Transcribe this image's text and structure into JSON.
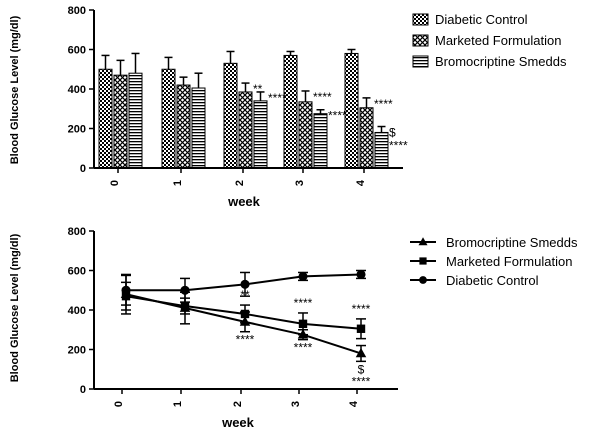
{
  "chart_data": [
    {
      "type": "bar",
      "title": "",
      "xlabel": "week",
      "ylabel": "Blood Glucose Level (mg/dl)",
      "ylim": [
        0,
        800
      ],
      "yticks": [
        0,
        200,
        400,
        600,
        800
      ],
      "categories": [
        "0",
        "1",
        "2",
        "3",
        "4"
      ],
      "legend_position": "top-right",
      "series": [
        {
          "name": "Diabetic Control",
          "pattern": "checker",
          "values": [
            500,
            500,
            530,
            570,
            580
          ],
          "errors": [
            70,
            60,
            60,
            20,
            20
          ]
        },
        {
          "name": "Marketed Formulation",
          "pattern": "cross",
          "values": [
            470,
            420,
            385,
            335,
            305
          ],
          "errors": [
            75,
            40,
            45,
            55,
            50
          ]
        },
        {
          "name": "Bromocriptine Smedds",
          "pattern": "stripes",
          "values": [
            480,
            405,
            340,
            275,
            180
          ],
          "errors": [
            100,
            75,
            45,
            20,
            30
          ]
        }
      ],
      "annotations": [
        {
          "category": "2",
          "series": "Marketed Formulation",
          "text": "**"
        },
        {
          "category": "2",
          "series": "Bromocriptine Smedds",
          "text": "****"
        },
        {
          "category": "3",
          "series": "Marketed Formulation",
          "text": "****"
        },
        {
          "category": "3",
          "series": "Bromocriptine Smedds",
          "text": "****"
        },
        {
          "category": "4",
          "series": "Marketed Formulation",
          "text": "****"
        },
        {
          "category": "4",
          "series": "Bromocriptine Smedds",
          "text": "$"
        },
        {
          "category": "4",
          "series": "Bromocriptine Smedds",
          "text": "****"
        }
      ]
    },
    {
      "type": "line",
      "title": "",
      "xlabel": "week",
      "ylabel": "Blood Glucose Level (mg/dl)",
      "ylim": [
        0,
        800
      ],
      "yticks": [
        0,
        200,
        400,
        600,
        800
      ],
      "categories": [
        "0",
        "1",
        "2",
        "3",
        "4"
      ],
      "legend_position": "top-right",
      "series": [
        {
          "name": "Bromocriptine Smedds",
          "marker": "triangle",
          "values": [
            480,
            410,
            340,
            275,
            180
          ],
          "errors": [
            100,
            80,
            50,
            25,
            40
          ]
        },
        {
          "name": "Marketed Formulation",
          "marker": "square",
          "values": [
            470,
            420,
            380,
            330,
            305
          ],
          "errors": [
            70,
            40,
            45,
            55,
            50
          ]
        },
        {
          "name": "Diabetic Control",
          "marker": "circle",
          "values": [
            500,
            500,
            530,
            570,
            580
          ],
          "errors": [
            75,
            60,
            60,
            20,
            20
          ]
        }
      ],
      "annotations": [
        {
          "category": "2",
          "series": "Marketed Formulation",
          "text": "**"
        },
        {
          "category": "2",
          "series": "Bromocriptine Smedds",
          "text": "****"
        },
        {
          "category": "3",
          "series": "Marketed Formulation",
          "text": "****"
        },
        {
          "category": "3",
          "series": "Bromocriptine Smedds",
          "text": "****"
        },
        {
          "category": "4",
          "series": "Marketed Formulation",
          "text": "****"
        },
        {
          "category": "4",
          "series": "Bromocriptine Smedds",
          "text": "$"
        },
        {
          "category": "4",
          "series": "Bromocriptine Smedds",
          "text": "****"
        }
      ]
    }
  ]
}
